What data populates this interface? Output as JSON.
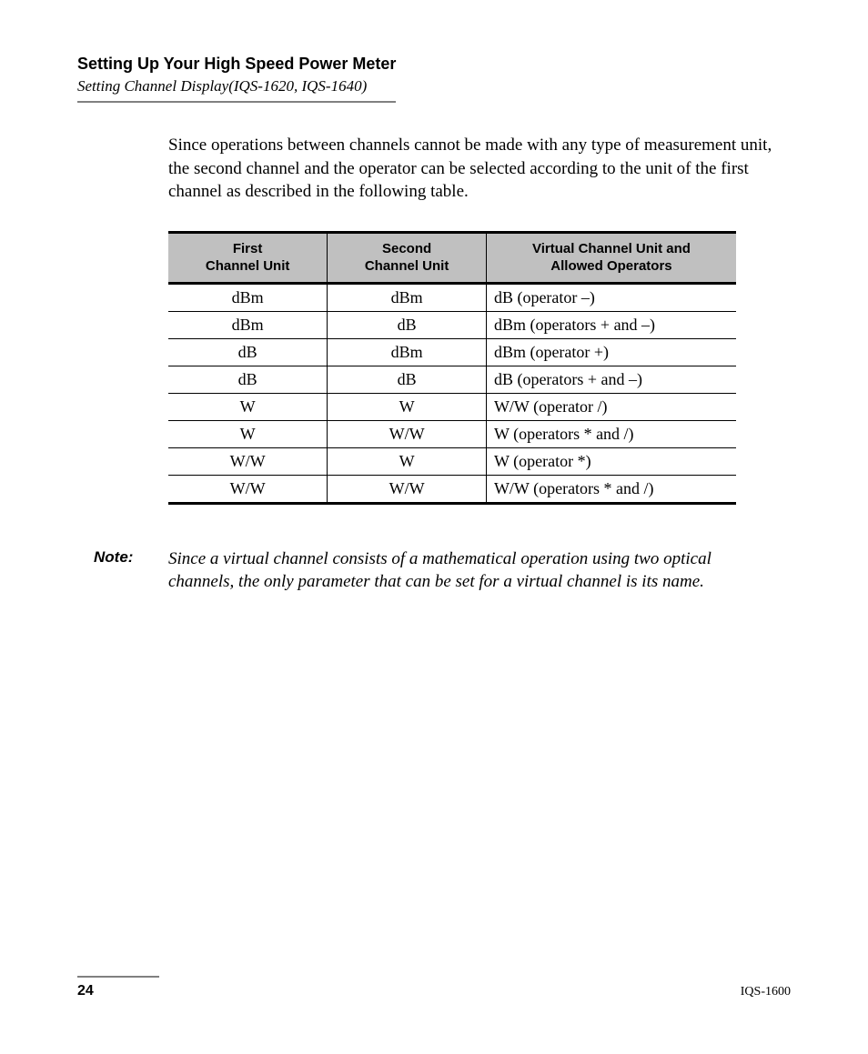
{
  "header": {
    "title": "Setting Up Your High Speed Power Meter",
    "subtitle": "Setting Channel Display(IQS-1620, IQS-1640)"
  },
  "intro": "Since operations between channels cannot be made with any type of measurement unit, the second channel and the operator can be selected according to the unit of the first channel as described in the following table.",
  "table": {
    "type": "table",
    "background_color": "#ffffff",
    "header_bg": "#c0c0c0",
    "border_color": "#000000",
    "header_font": "Verdana",
    "header_fontsize": 15,
    "body_fontsize": 18,
    "columns": [
      {
        "line1": "First",
        "line2": "Channel Unit",
        "align": "center",
        "width_pct": 28
      },
      {
        "line1": "Second",
        "line2": "Channel Unit",
        "align": "center",
        "width_pct": 28
      },
      {
        "line1": "Virtual Channel Unit and",
        "line2": "Allowed Operators",
        "align": "left",
        "width_pct": 44
      }
    ],
    "rows": [
      [
        "dBm",
        "dBm",
        "dB (operator –)"
      ],
      [
        "dBm",
        "dB",
        "dBm (operators + and –)"
      ],
      [
        "dB",
        "dBm",
        "dBm (operator +)"
      ],
      [
        "dB",
        "dB",
        "dB (operators + and –)"
      ],
      [
        "W",
        "W",
        "W/W (operator /)"
      ],
      [
        "W",
        "W/W",
        "W (operators * and /)"
      ],
      [
        "W/W",
        "W",
        "W (operator *)"
      ],
      [
        "W/W",
        "W/W",
        "W/W (operators * and /)"
      ]
    ]
  },
  "note": {
    "label": "Note:",
    "body": "Since a virtual channel consists of a mathematical operation using two optical channels, the only parameter that can be set for a virtual channel is its name."
  },
  "footer": {
    "page_number": "24",
    "doc_id": "IQS-1600"
  }
}
